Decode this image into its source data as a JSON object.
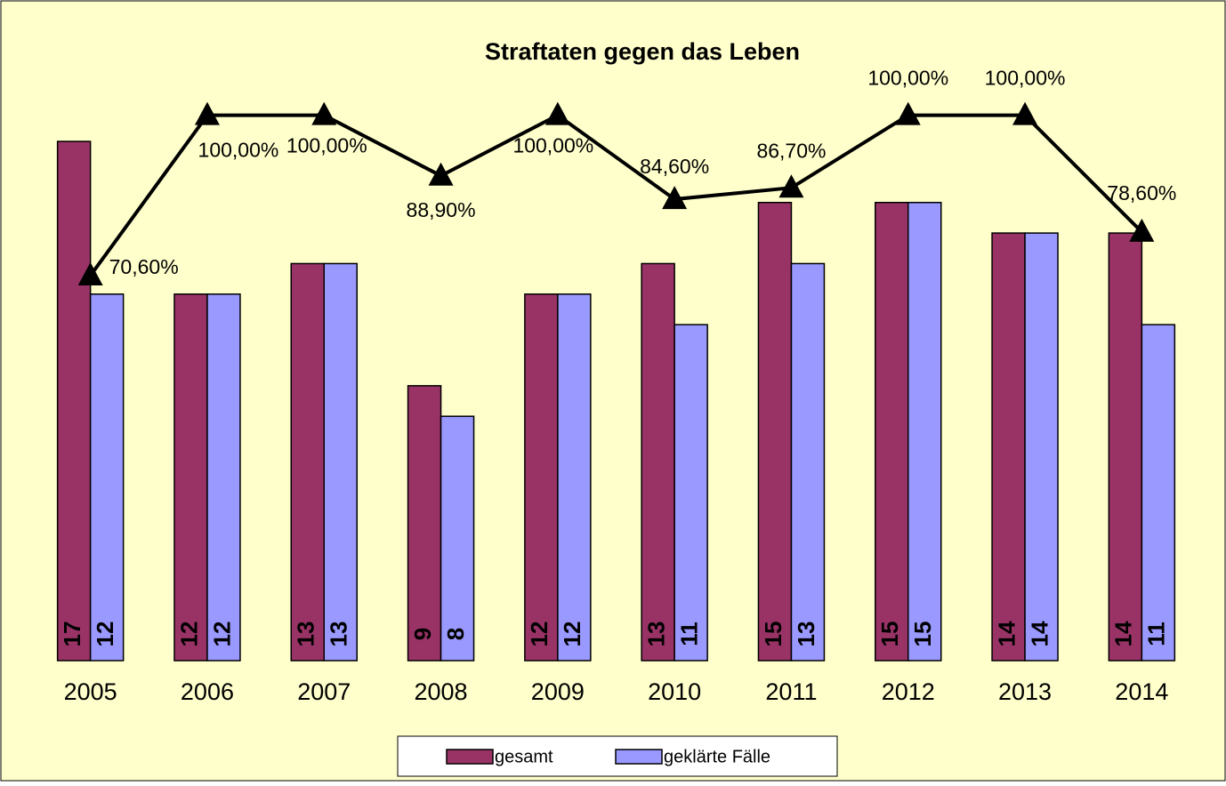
{
  "chart_data": {
    "type": "bar",
    "title": "Straftaten gegen das Leben",
    "categories": [
      "2005",
      "2006",
      "2007",
      "2008",
      "2009",
      "2010",
      "2011",
      "2012",
      "2013",
      "2014"
    ],
    "ylim": [
      0,
      20
    ],
    "y2lim": [
      0,
      112
    ],
    "legend": "bottom",
    "series": [
      {
        "name": "gesamt",
        "color": "#993366",
        "values": [
          17,
          12,
          13,
          9,
          12,
          13,
          15,
          15,
          14,
          14
        ]
      },
      {
        "name": "geklärte Fälle",
        "color": "#9999ff",
        "values": [
          12,
          12,
          13,
          8,
          12,
          11,
          13,
          15,
          14,
          11
        ]
      },
      {
        "type": "line",
        "axis": "y2",
        "color": "#000000",
        "values": [
          70.6,
          100,
          100,
          88.9,
          100,
          84.6,
          86.7,
          100,
          100,
          78.6
        ],
        "value_labels": [
          "70,60%",
          "100,00%",
          "100,00%",
          "88,90%",
          "100,00%",
          "84,60%",
          "86,70%",
          "100,00%",
          "100,00%",
          "78,60%"
        ]
      }
    ]
  }
}
